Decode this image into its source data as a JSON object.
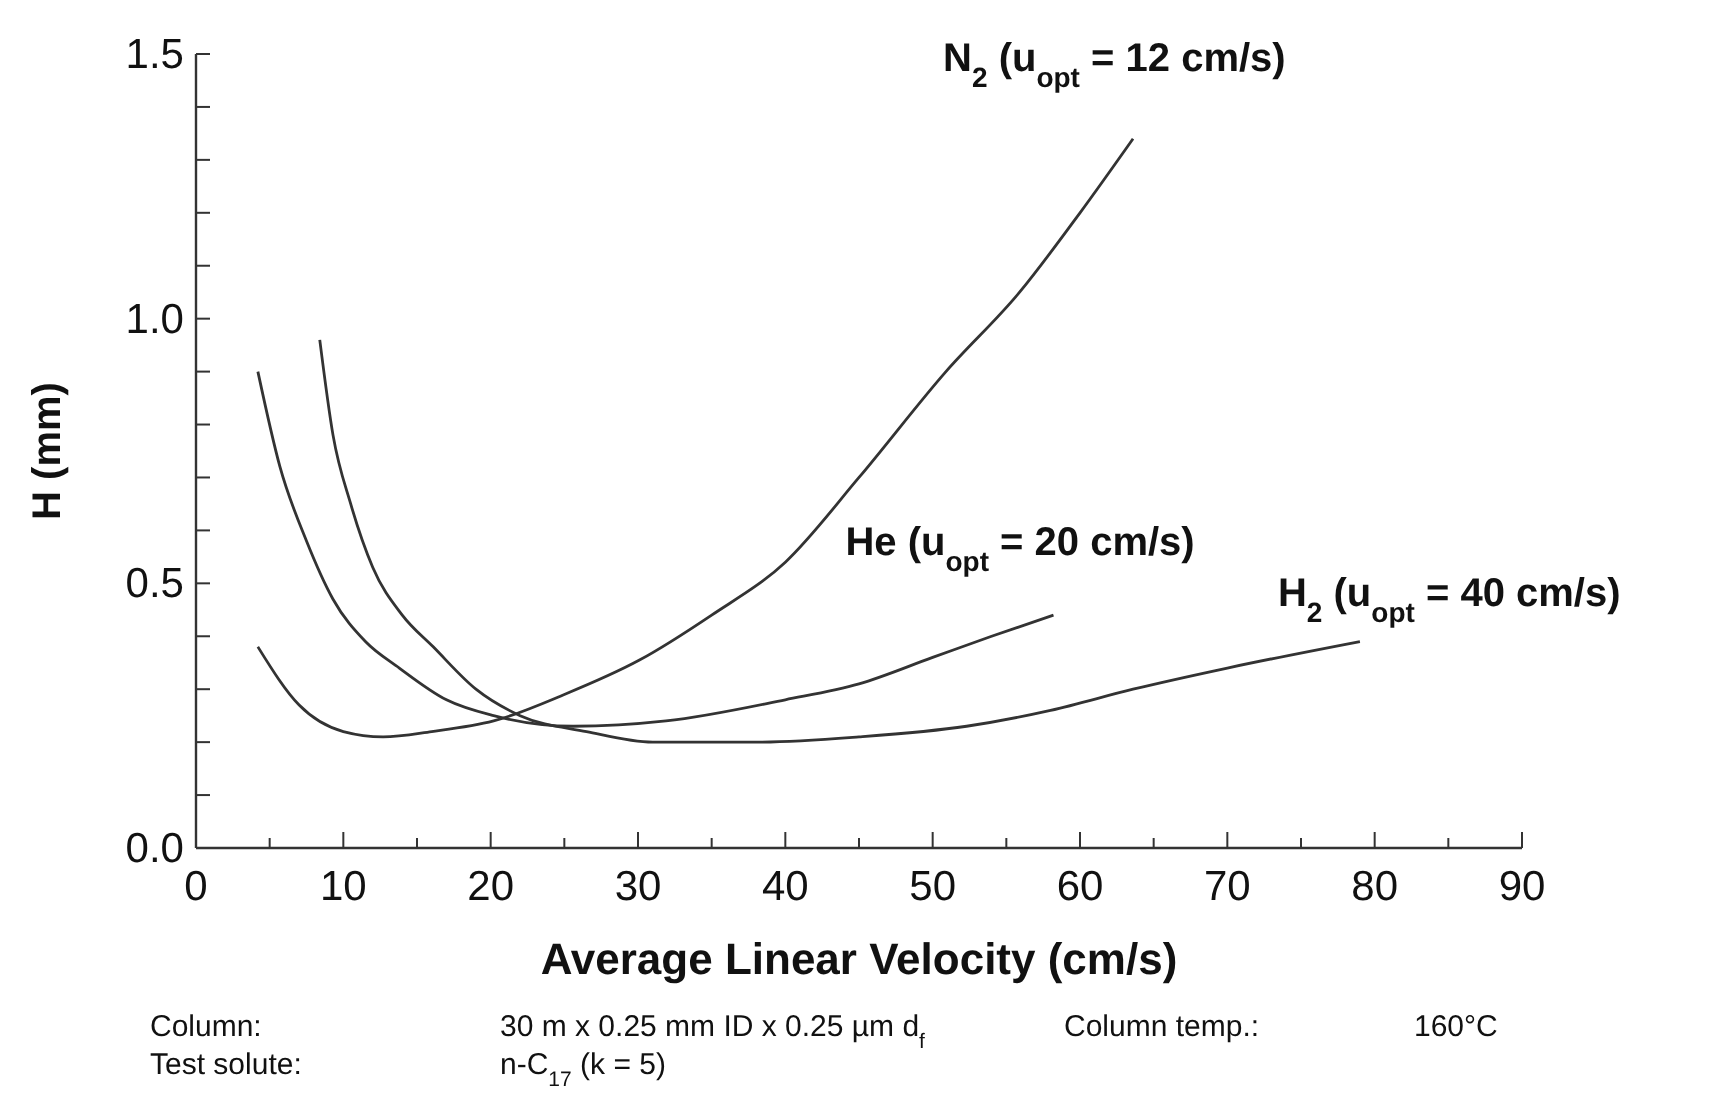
{
  "chart_data": {
    "type": "line",
    "xlabel": "Average Linear Velocity (cm/s)",
    "ylabel": "H (mm)",
    "xlim": [
      0,
      90
    ],
    "ylim": [
      0,
      1.5
    ],
    "xticks": [
      0,
      {
        "value": 5,
        "label": null
      },
      10,
      {
        "value": 15,
        "label": null
      },
      20,
      {
        "value": 25,
        "label": null
      },
      30,
      {
        "value": 35,
        "label": null
      },
      40,
      {
        "value": 45,
        "label": null
      },
      50,
      {
        "value": 55,
        "label": null
      },
      60,
      {
        "value": 65,
        "label": null
      },
      70,
      {
        "value": 75,
        "label": null
      },
      80,
      {
        "value": 85,
        "label": null
      },
      90
    ],
    "yticks": [
      {
        "value": 0,
        "label": "0.0"
      },
      {
        "value": 0.1,
        "label": null
      },
      {
        "value": 0.2,
        "label": null
      },
      {
        "value": 0.3,
        "label": null
      },
      {
        "value": 0.4,
        "label": null
      },
      0.5,
      {
        "value": 0.6,
        "label": null
      },
      {
        "value": 0.7,
        "label": null
      },
      {
        "value": 0.8,
        "label": null
      },
      {
        "value": 0.9,
        "label": null
      },
      {
        "value": 1,
        "label": "1.0"
      },
      {
        "value": 1.1,
        "label": null
      },
      {
        "value": 1.2,
        "label": null
      },
      {
        "value": 1.3,
        "label": null
      },
      {
        "value": 1.4,
        "label": null
      },
      1.5
    ],
    "grid": false,
    "legend": false,
    "marker": "none",
    "line_style": "solid",
    "series": [
      {
        "name": "N$_{2}$ (u$_{opt}$ = 12 cm/s)",
        "color": "#333333",
        "x": [
          4.2,
          7,
          10,
          12.7,
          16,
          20.2,
          25,
          30.1,
          35,
          40,
          45,
          50.9,
          55.9,
          60,
          63.6
        ],
        "values": [
          0.38,
          0.27,
          0.22,
          0.21,
          0.22,
          0.24,
          0.29,
          0.355,
          0.44,
          0.54,
          0.7,
          0.9,
          1.05,
          1.2,
          1.34
        ]
      },
      {
        "name": "He (u$_{opt}$ = 20 cm/s)",
        "color": "#333333",
        "x": [
          4.2,
          5.7,
          7.5,
          9.3,
          11.5,
          13.8,
          17,
          20.2,
          25.6,
          31.9,
          40,
          45,
          50,
          54,
          58.2
        ],
        "values": [
          0.9,
          0.72,
          0.58,
          0.47,
          0.39,
          0.34,
          0.28,
          0.25,
          0.23,
          0.24,
          0.28,
          0.31,
          0.36,
          0.4,
          0.44
        ]
      },
      {
        "name": "H$_{2}$ (u$_{opt}$ = 40 cm/s)",
        "color": "#333333",
        "x": [
          8.4,
          9.3,
          10.5,
          12,
          14,
          16.1,
          19,
          22,
          26.5,
          31,
          38,
          45,
          52.3,
          58,
          63.6,
          70,
          79
        ],
        "values": [
          0.96,
          0.78,
          0.65,
          0.53,
          0.44,
          0.38,
          0.3,
          0.25,
          0.22,
          0.2,
          0.2,
          0.21,
          0.23,
          0.26,
          0.3,
          0.34,
          0.39
        ]
      }
    ],
    "annotations": [
      "Column:",
      "30 m x 0.25 mm ID x 0.25 µm d$_{f}$",
      "Column temp.:",
      "160°C",
      "Test solute:",
      "n-C$_{17}$ (k = 5)"
    ]
  }
}
